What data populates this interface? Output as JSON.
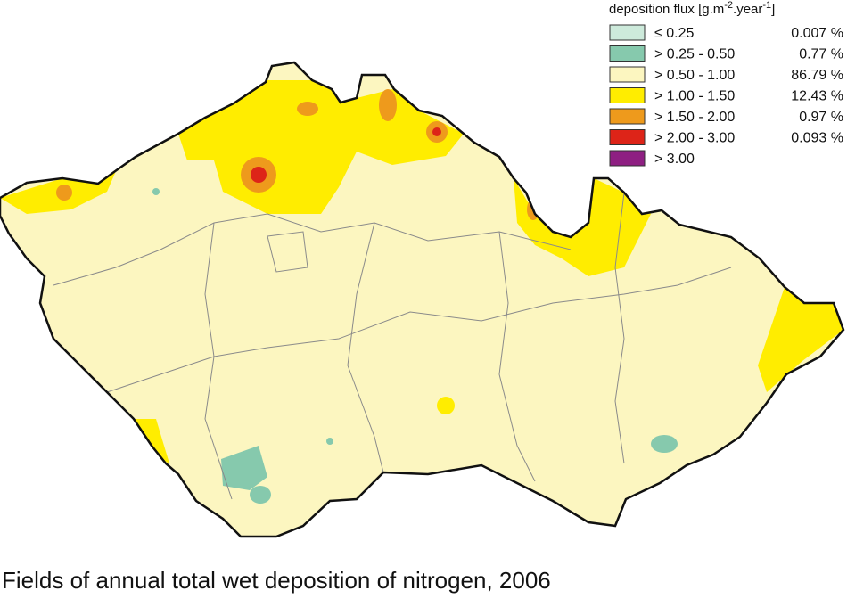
{
  "legend": {
    "title_parts": [
      "deposition flux [g.m",
      "-2",
      ".year",
      "-1",
      "]"
    ],
    "items": [
      {
        "label": "≤ 0.25",
        "share": "0.007 %",
        "color": "#cdeadb"
      },
      {
        "label": "> 0.25 - 0.50",
        "share": "0.77 %",
        "color": "#86c9ad"
      },
      {
        "label": "> 0.50 - 1.00",
        "share": "86.79 %",
        "color": "#fcf6c0"
      },
      {
        "label": "> 1.00 - 1.50",
        "share": "12.43 %",
        "color": "#ffed00"
      },
      {
        "label": "> 1.50 - 2.00",
        "share": "0.97 %",
        "color": "#ee9a1c"
      },
      {
        "label": "> 2.00 - 3.00",
        "share": "0.093 %",
        "color": "#dd2418"
      },
      {
        "label": "> 3.00",
        "color": "#8e1f82"
      }
    ]
  },
  "caption": "Fields of annual total wet deposition of nitrogen, 2006"
}
